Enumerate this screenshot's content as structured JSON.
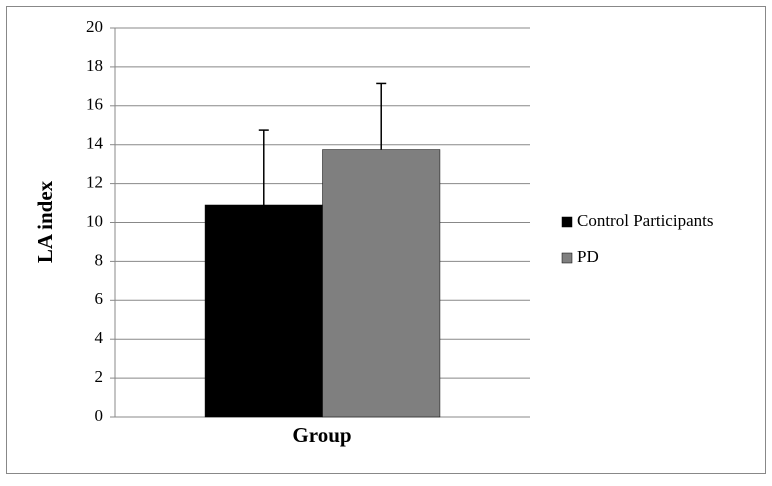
{
  "chart_data": {
    "type": "bar",
    "x_label": "Group",
    "y_label": "LA index",
    "categories": [
      null
    ],
    "series": [
      {
        "name": "Control Participants",
        "color": "#000000",
        "values": [
          10.9
        ],
        "errors": [
          3.85
        ]
      },
      {
        "name": "PD",
        "color": "#7f7f7f",
        "values": [
          13.75
        ],
        "errors": [
          3.4
        ]
      }
    ],
    "ylim": [
      0,
      20
    ],
    "yticks": [
      0,
      2,
      4,
      6,
      8,
      10,
      12,
      14,
      16,
      18,
      20
    ],
    "grid": true,
    "legend": "right"
  }
}
